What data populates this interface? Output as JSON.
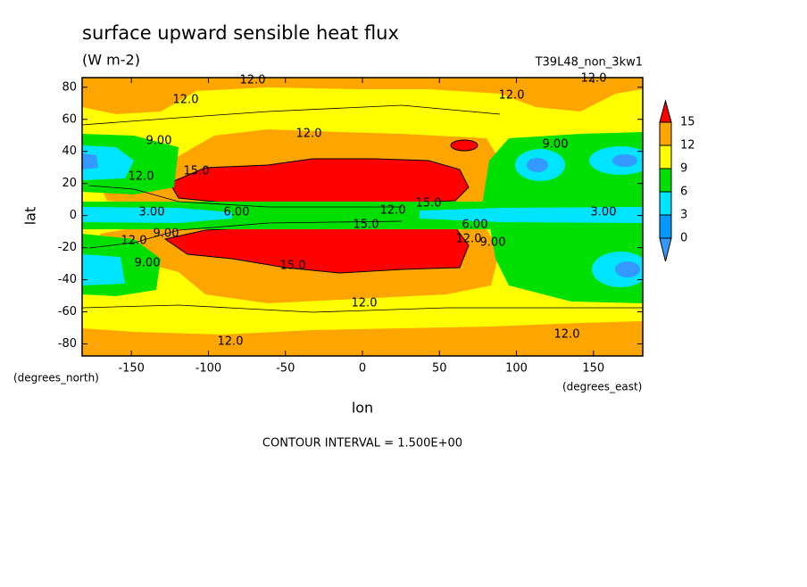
{
  "chart_data": {
    "type": "contour",
    "title": "surface upward sensible heat flux",
    "subtitle": "(W m-2)",
    "annotation": "T39L48_non_3kw1",
    "x_label": "lon",
    "y_label": "lat",
    "x_unit": "(degrees_east)",
    "y_unit": "(degrees_north)",
    "footer": "CONTOUR INTERVAL = 1.500E+00",
    "xlim": [
      -182,
      182
    ],
    "ylim": [
      -87.5,
      86
    ],
    "xticks": [
      -150,
      -100,
      -50,
      0,
      50,
      100,
      150
    ],
    "yticks": [
      -80,
      -60,
      -40,
      -20,
      0,
      20,
      40,
      60,
      80
    ],
    "levels": [
      0,
      3,
      6,
      9,
      12,
      15
    ],
    "colors": [
      "#3399ff",
      "#0099ff",
      "#00e5ff",
      "#00e000",
      "#ffff00",
      "#ffa500",
      "#ff0000"
    ],
    "contour_labels": [
      "12.0",
      "12.0",
      "12.0",
      "12.0",
      "12.0",
      "9.00",
      "9.00",
      "12.0",
      "15.0",
      "3.00",
      "6.00",
      "12.0",
      "15.0",
      "15.0",
      "6.00",
      "12.0",
      "9.00",
      "9.00",
      "12.0",
      "9.00",
      "15.0",
      "12.0",
      "12.0",
      "12.0",
      "3.00"
    ]
  }
}
